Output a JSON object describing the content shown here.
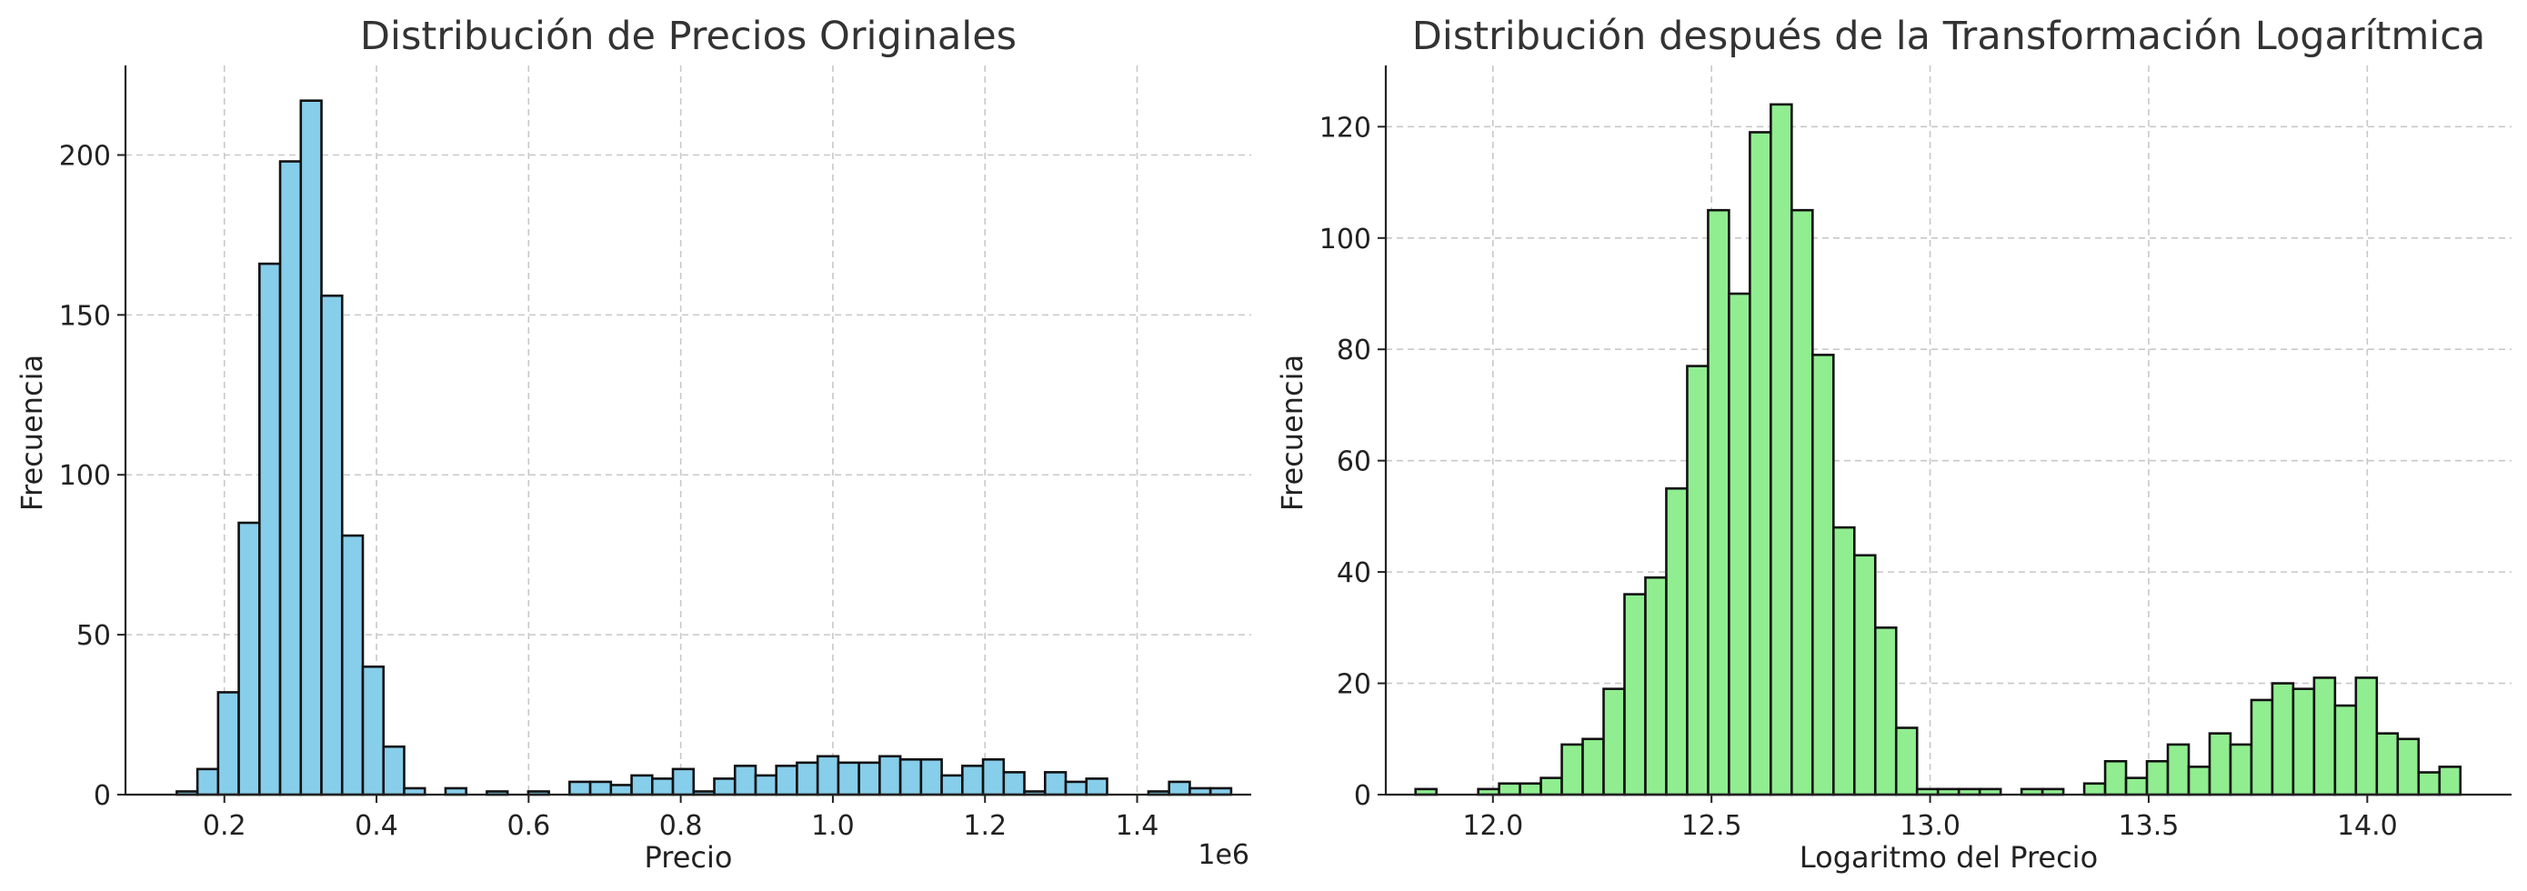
{
  "chart_data": [
    {
      "type": "bar",
      "title": "Distribución de Precios Originales",
      "xlabel": "Precio",
      "ylabel": "Frecuencia",
      "x_offset_label": "1e6",
      "xlim": [
        0.07,
        1.55
      ],
      "ylim": [
        0,
        228
      ],
      "xticks": [
        0.2,
        0.4,
        0.6,
        0.8,
        1.0,
        1.2,
        1.4
      ],
      "xtick_labels": [
        "0.2",
        "0.4",
        "0.6",
        "0.8",
        "1.0",
        "1.2",
        "1.4"
      ],
      "yticks": [
        0,
        50,
        100,
        150,
        200
      ],
      "ytick_labels": [
        "0",
        "50",
        "100",
        "150",
        "200"
      ],
      "grid": true,
      "color": "#87CEEB",
      "bin_start": 0.1374,
      "bin_width": 0.02718,
      "values": [
        1,
        8,
        32,
        85,
        166,
        198,
        217,
        156,
        81,
        40,
        15,
        2,
        0,
        2,
        0,
        1,
        0,
        1,
        0,
        4,
        4,
        3,
        6,
        5,
        8,
        1,
        5,
        9,
        6,
        9,
        10,
        12,
        10,
        10,
        12,
        11,
        11,
        6,
        9,
        11,
        7,
        1,
        7,
        4,
        5,
        0,
        0,
        1,
        4,
        2,
        2
      ]
    },
    {
      "type": "bar",
      "title": "Distribución después de la Transformación Logarítmica",
      "xlabel": "Logaritmo del Precio",
      "ylabel": "Frecuencia",
      "xlim": [
        11.755,
        14.33
      ],
      "ylim": [
        0,
        131
      ],
      "xticks": [
        12.0,
        12.5,
        13.0,
        13.5,
        14.0
      ],
      "xtick_labels": [
        "12.0",
        "12.5",
        "13.0",
        "13.5",
        "14.0"
      ],
      "yticks": [
        0,
        20,
        40,
        60,
        80,
        100,
        120
      ],
      "ytick_labels": [
        "0",
        "20",
        "40",
        "60",
        "80",
        "100",
        "120"
      ],
      "grid": true,
      "color": "#90EE90",
      "bin_start": 11.823,
      "bin_width": 0.0478,
      "values": [
        1,
        0,
        0,
        1,
        2,
        2,
        3,
        9,
        10,
        19,
        36,
        39,
        55,
        77,
        105,
        90,
        119,
        124,
        105,
        79,
        48,
        43,
        30,
        12,
        1,
        1,
        1,
        1,
        0,
        1,
        1,
        0,
        2,
        6,
        3,
        6,
        9,
        5,
        11,
        9,
        17,
        20,
        19,
        21,
        16,
        21,
        11,
        10,
        4,
        5
      ]
    }
  ]
}
